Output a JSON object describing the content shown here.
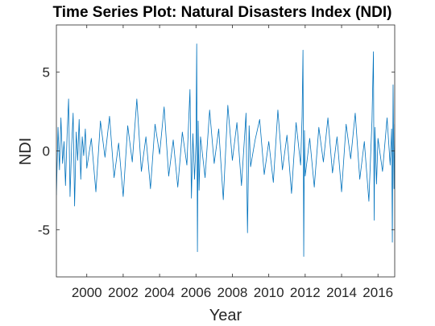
{
  "chart_data": {
    "type": "line",
    "title": "Time Series Plot:  Natural Disasters Index (NDI)",
    "xlabel": "Year",
    "ylabel": "NDI",
    "xlim": [
      1998.33,
      2016.92
    ],
    "ylim": [
      -8,
      8
    ],
    "xticks": [
      2000,
      2002,
      2004,
      2006,
      2008,
      2010,
      2012,
      2014,
      2016
    ],
    "xtick_labels": [
      "2000",
      "2002",
      "2004",
      "2006",
      "2008",
      "2010",
      "2012",
      "2014",
      "2016"
    ],
    "yticks": [
      -5,
      0,
      5
    ],
    "ytick_labels": [
      "-5",
      "0",
      "5"
    ],
    "grid": false,
    "line_color": "#0072BD",
    "series": [
      {
        "x": [
          1998.33,
          1998.42,
          1998.5,
          1998.58,
          1998.67,
          1998.75,
          1998.83,
          1998.92,
          1999.0,
          1999.08,
          1999.17,
          1999.25,
          1999.33,
          1999.42,
          1999.5,
          1999.58,
          1999.67,
          1999.75,
          1999.83,
          1999.92,
          2000.0,
          2000.25,
          2000.5,
          2000.75,
          2001.0,
          2001.25,
          2001.5,
          2001.75,
          2002.0,
          2002.25,
          2002.5,
          2002.75,
          2003.0,
          2003.25,
          2003.5,
          2003.75,
          2004.0,
          2004.25,
          2004.5,
          2004.75,
          2005.0,
          2005.25,
          2005.5,
          2005.67,
          2005.75,
          2005.83,
          2005.92,
          2006.0,
          2006.04,
          2006.08,
          2006.12,
          2006.17,
          2006.25,
          2006.5,
          2006.75,
          2007.0,
          2007.25,
          2007.5,
          2007.75,
          2008.0,
          2008.25,
          2008.5,
          2008.75,
          2008.83,
          2008.92,
          2009.0,
          2009.25,
          2009.5,
          2009.75,
          2010.0,
          2010.25,
          2010.5,
          2010.75,
          2011.0,
          2011.25,
          2011.5,
          2011.75,
          2011.83,
          2011.88,
          2011.92,
          2011.96,
          2012.0,
          2012.25,
          2012.5,
          2012.75,
          2013.0,
          2013.25,
          2013.5,
          2013.75,
          2014.0,
          2014.25,
          2014.5,
          2014.75,
          2015.0,
          2015.25,
          2015.5,
          2015.67,
          2015.75,
          2015.79,
          2015.83,
          2015.92,
          2016.0,
          2016.25,
          2016.5,
          2016.67,
          2016.75,
          2016.79,
          2016.83,
          2016.88,
          2016.92
        ],
        "y": [
          -2.8,
          1.5,
          -1.2,
          2.1,
          -0.8,
          0.6,
          -2.2,
          1.1,
          3.3,
          -2.9,
          0.4,
          2.4,
          -3.5,
          1.2,
          -0.6,
          2.0,
          -1.8,
          0.9,
          -0.3,
          1.4,
          -1.1,
          0.8,
          -2.6,
          1.9,
          -0.4,
          2.2,
          -1.7,
          0.5,
          -2.9,
          1.6,
          -0.7,
          3.3,
          -1.3,
          0.9,
          -2.4,
          1.7,
          -0.2,
          2.8,
          -1.6,
          0.7,
          -2.3,
          1.2,
          -0.9,
          3.9,
          -3.0,
          1.1,
          -1.8,
          0.5,
          6.8,
          -6.4,
          1.9,
          -2.5,
          0.9,
          -1.7,
          2.6,
          -0.8,
          1.4,
          -3.1,
          2.9,
          -0.6,
          1.8,
          -2.2,
          2.4,
          -5.2,
          1.6,
          -1.0,
          0.7,
          2.0,
          -1.5,
          0.6,
          -2.0,
          2.6,
          -1.2,
          1.0,
          -2.7,
          1.8,
          -0.9,
          2.2,
          6.4,
          -6.7,
          1.3,
          -1.6,
          0.8,
          -2.3,
          1.5,
          -0.7,
          2.1,
          -1.4,
          0.9,
          -2.6,
          1.7,
          -0.5,
          2.4,
          -1.8,
          0.6,
          -3.2,
          1.9,
          6.3,
          -4.4,
          1.5,
          -2.1,
          0.8,
          -1.3,
          2.1,
          -0.9,
          1.4,
          -5.8,
          4.2,
          -2.4,
          1.7
        ]
      }
    ]
  }
}
